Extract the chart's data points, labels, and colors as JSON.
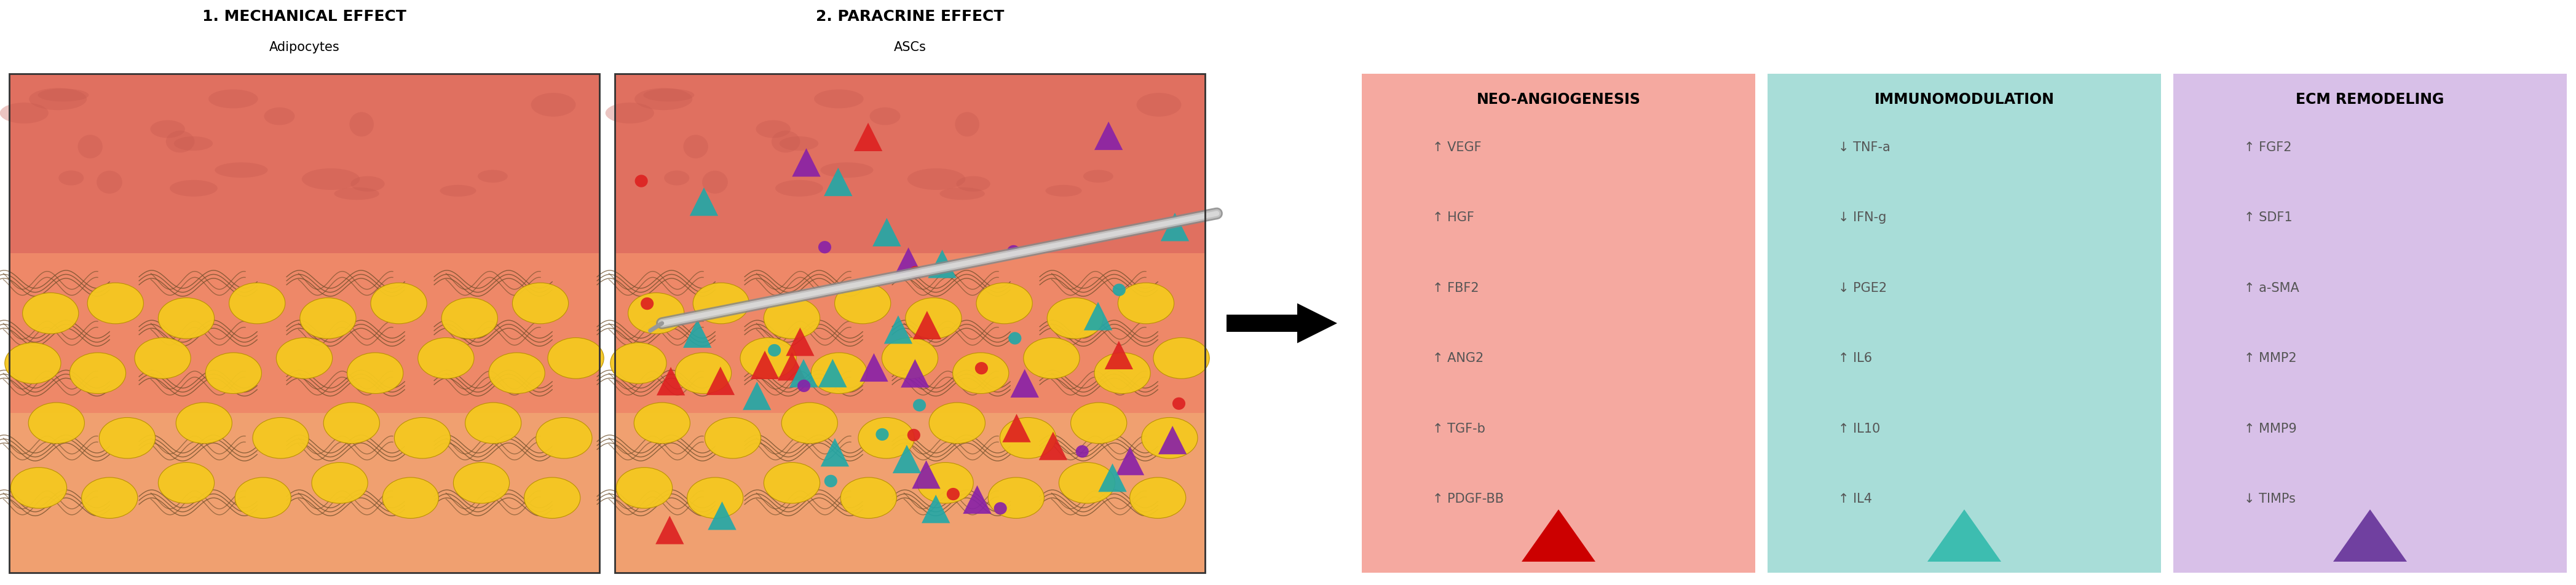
{
  "title1": "1. MECHANICAL EFFECT",
  "subtitle1": "Adipocytes",
  "title2": "2. PARACRINE EFFECT",
  "subtitle2": "ASCs",
  "col1_title": "NEO-ANGIOGENESIS",
  "col1_bg": "#f5a9a0",
  "col1_items": [
    "↑ VEGF",
    "↑ HGF",
    "↑ FBF2",
    "↑ ANG2",
    "↑ TGF-b",
    "↑ PDGF-BB"
  ],
  "col1_triangle_color": "#cc0000",
  "col2_title": "IMMUNOMODULATION",
  "col2_bg": "#a8ddd8",
  "col2_items": [
    "↓ TNF-a",
    "↓ IFN-g",
    "↓ PGE2",
    "↑ IL6",
    "↑ IL10",
    "↑ IL4"
  ],
  "col2_triangle_color": "#3dbdb0",
  "col3_title": "ECM REMODELING",
  "col3_bg": "#d8c0e8",
  "col3_items": [
    "↑ FGF2",
    "↑ SDF1",
    "↑ a-SMA",
    "↑ MMP2",
    "↑ MMP9",
    "↓ TIMPs"
  ],
  "col3_triangle_color": "#7040a0",
  "background_color": "#ffffff",
  "text_color": "#555555",
  "title_fontsize": 18,
  "subtitle_fontsize": 15,
  "item_fontsize": 15,
  "col_title_fontsize": 17
}
